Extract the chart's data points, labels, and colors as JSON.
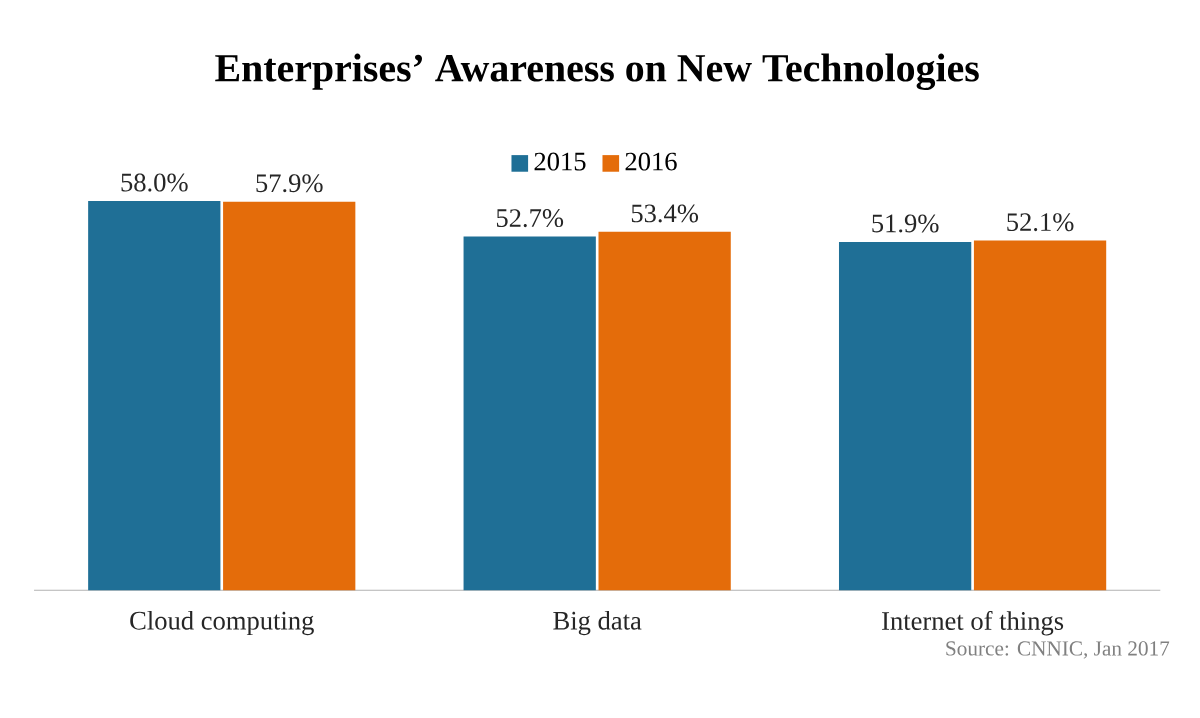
{
  "chart_data": {
    "type": "bar",
    "title": "Enterprises’ Awareness on New Technologies",
    "categories": [
      "Cloud computing",
      "Big data",
      "Internet of things"
    ],
    "series": [
      {
        "name": "2015",
        "color": "#1f6f96",
        "values": [
          58.0,
          52.7,
          51.9
        ],
        "value_labels": [
          "58.0%",
          "52.7%",
          "51.9%"
        ]
      },
      {
        "name": "2016",
        "color": "#e46c0a",
        "values": [
          57.9,
          53.4,
          52.1
        ],
        "value_labels": [
          "57.9%",
          "53.4%",
          "52.1%"
        ]
      }
    ],
    "legend": "top",
    "annotations": [
      "Source: CNNIC, Jan 2017"
    ]
  }
}
